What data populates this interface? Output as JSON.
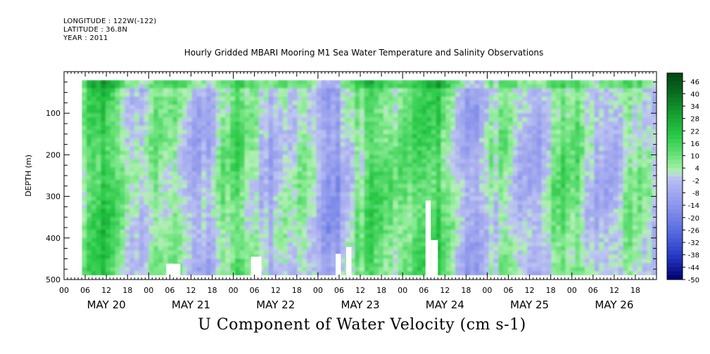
{
  "header": {
    "longitude": "LONGITUDE : 122W(-122)",
    "latitude": "LATITUDE : 36.8N",
    "year": "YEAR : 2011"
  },
  "chart_data": {
    "type": "heatmap",
    "title": "Hourly Gridded MBARI Mooring M1 Sea Water Temperature and Salinity Observations",
    "subtitle": "U Component of Water Velocity (cm s-1)",
    "ylabel": "DEPTH (m)",
    "xlabel": "",
    "y_reversed": true,
    "ylim": [
      0,
      500
    ],
    "data_depth_range": [
      20,
      490
    ],
    "y_ticks": [
      100,
      200,
      300,
      400,
      500
    ],
    "x_range_hours": [
      0,
      168
    ],
    "x_hour_tick_labels": [
      "00",
      "06",
      "12",
      "18",
      "00",
      "06",
      "12",
      "18",
      "00",
      "06",
      "12",
      "18",
      "00",
      "06",
      "12",
      "18",
      "00",
      "06",
      "12",
      "18",
      "00",
      "06",
      "12",
      "18",
      "00",
      "06",
      "12",
      "18"
    ],
    "x_day_labels": [
      "MAY 20",
      "MAY 21",
      "MAY 22",
      "MAY 23",
      "MAY 24",
      "MAY 25",
      "MAY 26"
    ],
    "data_start_hour": 5,
    "colorbar": {
      "min": -50,
      "max": 50,
      "step": 2,
      "tick_labels": [
        "46",
        "40",
        "34",
        "28",
        "22",
        "16",
        "10",
        "4",
        "-2",
        "-8",
        "-14",
        "-20",
        "-26",
        "-32",
        "-38",
        "-44",
        "-50"
      ]
    },
    "missing_data_regions": [
      {
        "hour_start": 29,
        "hour_end": 33,
        "depth_start": 462,
        "depth_end": 490
      },
      {
        "hour_start": 53,
        "hour_end": 56,
        "depth_start": 445,
        "depth_end": 490
      },
      {
        "hour_start": 77,
        "hour_end": 78.5,
        "depth_start": 438,
        "depth_end": 490
      },
      {
        "hour_start": 80,
        "hour_end": 81.5,
        "depth_start": 422,
        "depth_end": 490
      },
      {
        "hour_start": 102.5,
        "hour_end": 104,
        "depth_start": 310,
        "depth_end": 490
      },
      {
        "hour_start": 104,
        "hour_end": 106,
        "depth_start": 405,
        "depth_end": 490
      }
    ]
  }
}
